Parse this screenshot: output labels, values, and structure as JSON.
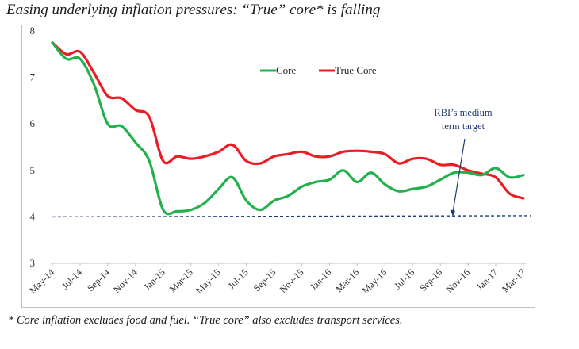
{
  "title": "Easing underlying inflation pressures: “True” core* is falling",
  "footnote": "* Core inflation excludes food and fuel. “True core” also excludes transport services.",
  "chart_data": {
    "type": "line",
    "x": [
      "May-14",
      "Jun-14",
      "Jul-14",
      "Aug-14",
      "Sep-14",
      "Oct-14",
      "Nov-14",
      "Dec-14",
      "Jan-15",
      "Feb-15",
      "Mar-15",
      "Apr-15",
      "May-15",
      "Jun-15",
      "Jul-15",
      "Aug-15",
      "Sep-15",
      "Oct-15",
      "Nov-15",
      "Dec-15",
      "Jan-16",
      "Feb-16",
      "Mar-16",
      "Apr-16",
      "May-16",
      "Jun-16",
      "Jul-16",
      "Aug-16",
      "Sep-16",
      "Oct-16",
      "Nov-16",
      "Dec-16",
      "Jan-17",
      "Feb-17",
      "Mar-17"
    ],
    "x_tick_labels": [
      "May-14",
      "Jul-14",
      "Sep-14",
      "Nov-14",
      "Jan-15",
      "Mar-15",
      "May-15",
      "Jul-15",
      "Sep-15",
      "Nov-15",
      "Jan-16",
      "Mar-16",
      "May-16",
      "Jul-16",
      "Sep-16",
      "Nov-16",
      "Jan-17",
      "Mar-17"
    ],
    "series": [
      {
        "name": "Core",
        "color": "#22b14c",
        "values": [
          7.75,
          7.4,
          7.4,
          6.85,
          6.0,
          5.95,
          5.6,
          5.2,
          4.15,
          4.12,
          4.15,
          4.3,
          4.6,
          4.85,
          4.35,
          4.15,
          4.35,
          4.45,
          4.65,
          4.75,
          4.8,
          5.0,
          4.75,
          4.95,
          4.7,
          4.55,
          4.6,
          4.65,
          4.8,
          4.95,
          4.95,
          4.9,
          5.05,
          4.85,
          4.9
        ]
      },
      {
        "name": "True Core",
        "color": "#ed1c24",
        "values": [
          7.75,
          7.5,
          7.55,
          7.1,
          6.6,
          6.55,
          6.3,
          6.15,
          5.2,
          5.3,
          5.25,
          5.3,
          5.4,
          5.55,
          5.2,
          5.15,
          5.3,
          5.35,
          5.4,
          5.3,
          5.3,
          5.4,
          5.42,
          5.4,
          5.35,
          5.15,
          5.25,
          5.25,
          5.12,
          5.12,
          5.0,
          4.93,
          4.85,
          4.5,
          4.4
        ]
      }
    ],
    "reference_line": {
      "value": 4,
      "style": "dashed",
      "color": "#1f3b73"
    },
    "annotation": {
      "lines": [
        "RBI’s medium",
        "term target"
      ]
    },
    "y_ticks": [
      3,
      4,
      5,
      6,
      7,
      8
    ],
    "ylim": [
      3,
      8
    ],
    "legend": {
      "placement": "top-center"
    },
    "grid": false
  }
}
